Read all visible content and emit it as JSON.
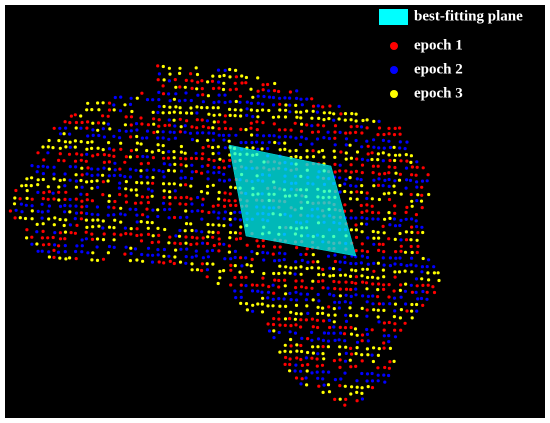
{
  "legend": [
    {
      "label": "best-fitting plane",
      "color": "#00ffff"
    },
    {
      "label": "epoch 1",
      "color": "#ff0000"
    },
    {
      "label": "epoch 2",
      "color": "#0000ff"
    },
    {
      "label": "epoch 3",
      "color": "#ffff00"
    }
  ]
}
